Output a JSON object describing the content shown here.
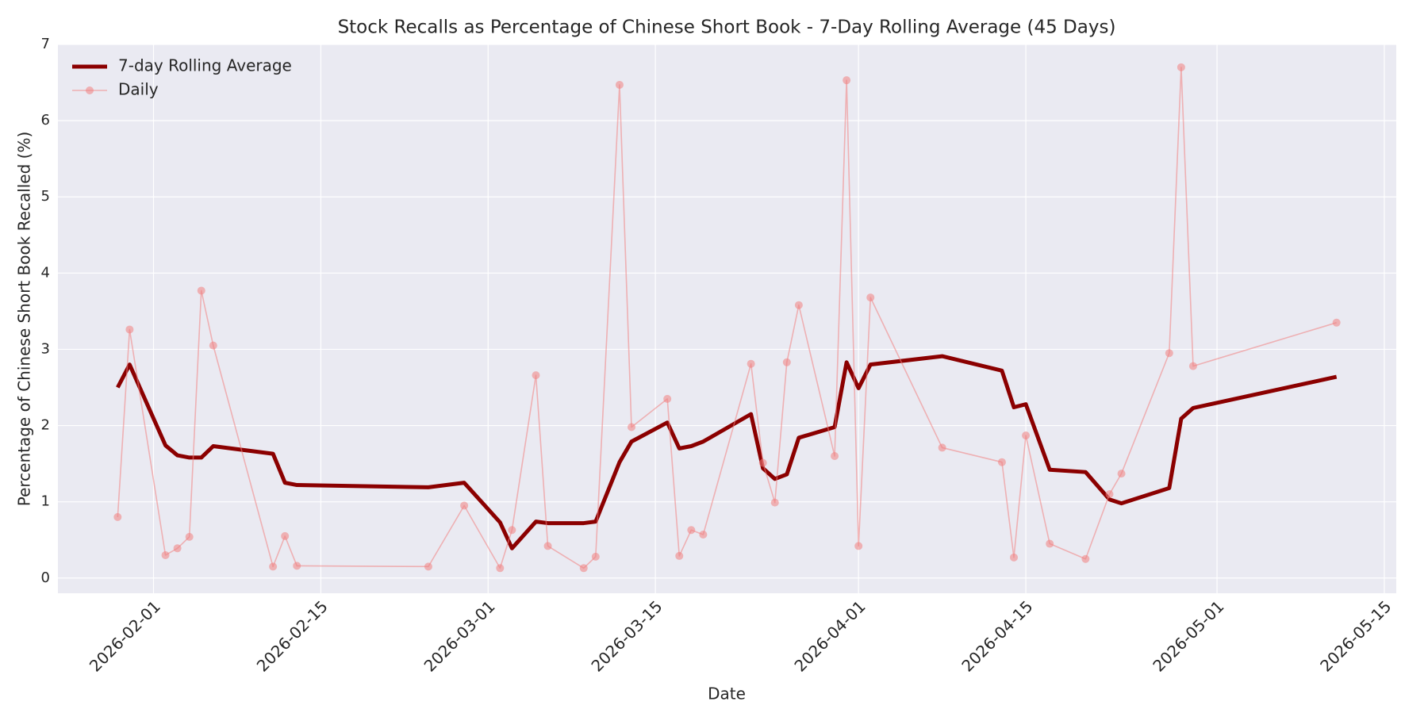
{
  "chart_data": {
    "type": "line",
    "title": "Stock Recalls as Percentage of Chinese Short Book - 7-Day Rolling Average (45 Days)",
    "x_label": "Date",
    "y_label": "Percentage of Chinese Short Book Recalled (%)",
    "x": [
      "2026-01-29",
      "2026-01-30",
      "2026-02-02",
      "2026-02-03",
      "2026-02-04",
      "2026-02-05",
      "2026-02-06",
      "2026-02-11",
      "2026-02-12",
      "2026-02-13",
      "2026-02-24",
      "2026-02-27",
      "2026-03-02",
      "2026-03-03",
      "2026-03-05",
      "2026-03-06",
      "2026-03-09",
      "2026-03-10",
      "2026-03-12",
      "2026-03-13",
      "2026-03-16",
      "2026-03-17",
      "2026-03-18",
      "2026-03-19",
      "2026-03-23",
      "2026-03-24",
      "2026-03-25",
      "2026-03-26",
      "2026-03-27",
      "2026-03-30",
      "2026-03-31",
      "2026-04-01",
      "2026-04-02",
      "2026-04-08",
      "2026-04-13",
      "2026-04-14",
      "2026-04-15",
      "2026-04-17",
      "2026-04-20",
      "2026-04-22",
      "2026-04-23",
      "2026-04-27",
      "2026-04-28",
      "2026-04-29",
      "2026-05-11"
    ],
    "series": [
      {
        "name": "7-day Rolling Average",
        "color": "#8b0000",
        "values": [
          2.5,
          2.8,
          1.74,
          1.61,
          1.58,
          1.58,
          1.73,
          1.63,
          1.25,
          1.22,
          1.19,
          1.25,
          0.73,
          0.39,
          0.74,
          0.72,
          0.72,
          0.74,
          1.52,
          1.79,
          2.04,
          1.7,
          1.73,
          1.79,
          2.15,
          1.44,
          1.3,
          1.36,
          1.84,
          1.98,
          2.83,
          2.49,
          2.8,
          2.91,
          2.72,
          2.24,
          2.28,
          1.42,
          1.39,
          1.03,
          0.98,
          1.18,
          2.09,
          2.23,
          2.64
        ]
      },
      {
        "name": "Daily",
        "color": "#f08080",
        "values": [
          0.8,
          3.26,
          0.3,
          0.39,
          0.54,
          3.77,
          3.05,
          0.15,
          0.55,
          0.16,
          0.15,
          0.95,
          0.13,
          0.63,
          2.66,
          0.42,
          0.13,
          0.28,
          6.47,
          1.98,
          2.35,
          0.29,
          0.63,
          0.57,
          2.81,
          1.51,
          0.99,
          2.83,
          3.58,
          1.6,
          6.53,
          0.42,
          3.68,
          1.71,
          1.52,
          0.27,
          1.87,
          0.45,
          0.25,
          1.1,
          1.37,
          2.95,
          6.7,
          2.78,
          3.35
        ]
      }
    ],
    "xlim": [
      "2026-01-24",
      "2026-05-16"
    ],
    "xticks": [
      "2026-02-01",
      "2026-02-15",
      "2026-03-01",
      "2026-03-15",
      "2026-04-01",
      "2026-04-15",
      "2026-05-01",
      "2026-05-15"
    ],
    "ylim": [
      -0.2,
      7.0
    ],
    "yticks": [
      0,
      1,
      2,
      3,
      4,
      5,
      6,
      7
    ],
    "grid": true,
    "legend": "upper left"
  }
}
